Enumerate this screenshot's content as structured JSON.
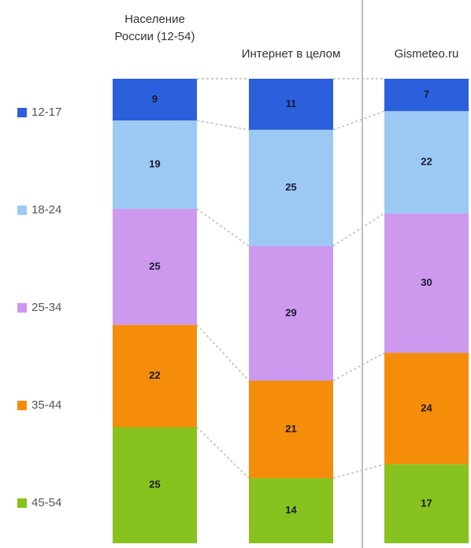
{
  "chart_data": {
    "type": "stacked_bar_100",
    "categories": [
      "Население России (12-54)",
      "Интернет в целом",
      "Gismeteo.ru"
    ],
    "series": [
      {
        "name": "12-17",
        "color": "#2b5fdb",
        "values": [
          9,
          11,
          7
        ]
      },
      {
        "name": "18-24",
        "color": "#9cc9f4",
        "values": [
          19,
          25,
          22
        ]
      },
      {
        "name": "25-34",
        "color": "#cc99ee",
        "values": [
          25,
          29,
          30
        ]
      },
      {
        "name": "35-44",
        "color": "#f58c0a",
        "values": [
          22,
          21,
          24
        ]
      },
      {
        "name": "45-54",
        "color": "#88c21e",
        "values": [
          25,
          14,
          17
        ]
      }
    ]
  }
}
